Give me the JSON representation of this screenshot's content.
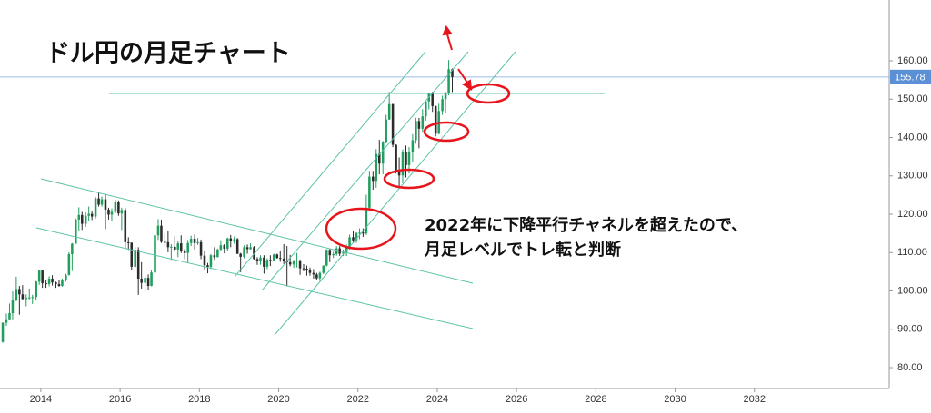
{
  "chart_data": {
    "type": "candlestick",
    "title": "ドル円の月足チャート",
    "annotation": [
      "2022年に下降平行チャネルを超えたので、",
      "月足レベルでトレ転と判断"
    ],
    "up_color": "#1f9e5c",
    "down_color": "#2b2b2b",
    "xlim": [
      2012.97,
      2035.4
    ],
    "ylim": [
      74.56,
      175.86
    ],
    "xticks": [
      2014,
      2016,
      2018,
      2020,
      2022,
      2024,
      2026,
      2028,
      2030,
      2032
    ],
    "yticks": [
      {
        "value": 80,
        "label": "80.00"
      },
      {
        "value": 90,
        "label": "90.00"
      },
      {
        "value": 100,
        "label": "100.00"
      },
      {
        "value": 110,
        "label": "110.00"
      },
      {
        "value": 120,
        "label": "120.00"
      },
      {
        "value": 130,
        "label": "130.00"
      },
      {
        "value": 140,
        "label": "140.00"
      },
      {
        "value": 150,
        "label": "150.00"
      },
      {
        "value": 160,
        "label": "160.00"
      }
    ],
    "last_price": 155.78,
    "last_price_color": "#5b8fd6",
    "x": [
      2013.04,
      2013.13,
      2013.21,
      2013.29,
      2013.38,
      2013.46,
      2013.54,
      2013.63,
      2013.71,
      2013.79,
      2013.88,
      2013.96,
      2014.04,
      2014.13,
      2014.21,
      2014.29,
      2014.38,
      2014.46,
      2014.54,
      2014.63,
      2014.71,
      2014.79,
      2014.88,
      2014.96,
      2015.04,
      2015.13,
      2015.21,
      2015.29,
      2015.38,
      2015.46,
      2015.54,
      2015.63,
      2015.71,
      2015.79,
      2015.88,
      2015.96,
      2016.04,
      2016.13,
      2016.21,
      2016.29,
      2016.38,
      2016.46,
      2016.54,
      2016.63,
      2016.71,
      2016.79,
      2016.88,
      2016.96,
      2017.04,
      2017.13,
      2017.21,
      2017.29,
      2017.38,
      2017.46,
      2017.54,
      2017.63,
      2017.71,
      2017.79,
      2017.88,
      2017.96,
      2018.04,
      2018.13,
      2018.21,
      2018.29,
      2018.38,
      2018.46,
      2018.54,
      2018.63,
      2018.71,
      2018.79,
      2018.88,
      2018.96,
      2019.04,
      2019.13,
      2019.21,
      2019.29,
      2019.38,
      2019.46,
      2019.54,
      2019.63,
      2019.71,
      2019.79,
      2019.88,
      2019.96,
      2020.04,
      2020.13,
      2020.21,
      2020.29,
      2020.38,
      2020.46,
      2020.54,
      2020.63,
      2020.71,
      2020.79,
      2020.88,
      2020.96,
      2021.04,
      2021.13,
      2021.21,
      2021.29,
      2021.38,
      2021.46,
      2021.54,
      2021.63,
      2021.71,
      2021.79,
      2021.88,
      2021.96,
      2022.04,
      2022.13,
      2022.21,
      2022.29,
      2022.38,
      2022.46,
      2022.54,
      2022.63,
      2022.71,
      2022.79,
      2022.88,
      2022.96,
      2023.04,
      2023.13,
      2023.21,
      2023.29,
      2023.38,
      2023.46,
      2023.54,
      2023.63,
      2023.71,
      2023.79,
      2023.88,
      2023.96,
      2024.04,
      2024.13,
      2024.21,
      2024.29,
      2024.38
    ],
    "open": [
      86.7,
      91.7,
      92.6,
      94.2,
      97.5,
      100.5,
      99.1,
      97.9,
      98.2,
      98.3,
      98.4,
      102.4,
      105.3,
      102.0,
      101.8,
      103.2,
      102.2,
      101.8,
      101.3,
      102.8,
      104.1,
      109.6,
      112.3,
      118.6,
      119.8,
      117.5,
      119.6,
      120.1,
      119.4,
      124.1,
      122.5,
      123.9,
      121.2,
      119.9,
      120.6,
      123.1,
      120.2,
      121.1,
      112.7,
      112.6,
      106.3,
      110.7,
      103.2,
      102.1,
      103.4,
      101.3,
      104.8,
      114.5,
      117.0,
      112.8,
      112.7,
      111.4,
      111.5,
      110.8,
      112.4,
      110.3,
      109.9,
      112.5,
      113.6,
      112.5,
      112.7,
      109.2,
      106.7,
      106.3,
      109.3,
      108.8,
      110.8,
      111.9,
      111.0,
      113.7,
      112.9,
      113.5,
      109.7,
      108.9,
      111.4,
      110.9,
      111.4,
      108.3,
      107.8,
      108.7,
      106.3,
      108.1,
      108.0,
      109.5,
      108.6,
      108.4,
      107.9,
      107.5,
      106.9,
      107.8,
      107.9,
      105.9,
      105.8,
      105.5,
      104.7,
      104.3,
      103.3,
      104.7,
      106.6,
      110.7,
      109.3,
      109.6,
      111.1,
      109.7,
      110.0,
      111.3,
      114.0,
      113.2,
      115.1,
      115.2,
      115.0,
      121.7,
      129.8,
      128.7,
      135.7,
      133.2,
      138.9,
      144.7,
      148.7,
      138.1,
      131.1,
      130.1,
      136.2,
      132.8,
      136.3,
      139.3,
      144.3,
      142.3,
      145.5,
      149.4,
      151.7,
      148.2,
      141.0,
      146.9,
      150.0,
      151.4,
      157.8
    ],
    "high": [
      91.8,
      94.1,
      96.7,
      99.9,
      103.7,
      101.3,
      101.5,
      99.1,
      100.6,
      99.0,
      102.6,
      105.4,
      105.4,
      102.8,
      103.8,
      104.1,
      102.4,
      102.8,
      103.2,
      104.5,
      110.1,
      112.5,
      118.9,
      121.8,
      120.6,
      120.5,
      122.0,
      120.8,
      124.5,
      125.9,
      124.6,
      125.3,
      121.7,
      121.5,
      123.8,
      123.6,
      121.7,
      121.7,
      114.0,
      112.0,
      111.5,
      111.4,
      107.5,
      104.2,
      104.3,
      105.5,
      114.8,
      118.7,
      118.6,
      114.9,
      115.5,
      112.2,
      114.4,
      112.9,
      114.5,
      111.0,
      113.3,
      114.4,
      114.7,
      113.8,
      113.4,
      110.5,
      107.3,
      109.6,
      111.4,
      111.0,
      113.2,
      112.2,
      113.9,
      114.6,
      114.2,
      113.8,
      109.9,
      111.9,
      112.1,
      112.4,
      111.7,
      108.8,
      109.3,
      109.3,
      108.5,
      109.3,
      109.7,
      109.7,
      110.3,
      112.2,
      111.7,
      109.4,
      108.1,
      109.9,
      108.2,
      107.0,
      106.6,
      106.1,
      105.7,
      104.7,
      105.0,
      106.7,
      110.9,
      110.9,
      110.2,
      111.7,
      111.7,
      110.8,
      112.1,
      114.7,
      115.5,
      115.3,
      116.3,
      116.3,
      125.1,
      131.3,
      131.3,
      137.0,
      139.4,
      139.1,
      145.9,
      151.9,
      148.8,
      138.2,
      134.8,
      136.9,
      137.9,
      137.5,
      140.9,
      145.1,
      145.1,
      147.4,
      149.7,
      151.7,
      151.9,
      148.3,
      148.8,
      150.9,
      151.9,
      160.2,
      157.99
    ],
    "low": [
      86.5,
      90.9,
      92.6,
      92.6,
      97.3,
      93.8,
      97.6,
      96.0,
      97.8,
      96.6,
      97.6,
      101.6,
      100.8,
      100.8,
      101.2,
      101.4,
      100.8,
      101.1,
      101.1,
      102.4,
      104.1,
      105.2,
      112.4,
      115.6,
      115.9,
      116.7,
      118.3,
      118.5,
      118.9,
      122.0,
      122.0,
      116.1,
      118.6,
      118.1,
      120.2,
      119.6,
      115.9,
      110.9,
      110.7,
      105.5,
      106.0,
      99.0,
      100.6,
      99.6,
      100.1,
      101.2,
      101.2,
      113.3,
      112.5,
      111.7,
      110.1,
      108.1,
      110.2,
      108.8,
      109.9,
      108.3,
      107.3,
      111.7,
      110.8,
      112.0,
      108.3,
      105.6,
      104.6,
      105.7,
      108.1,
      108.9,
      110.3,
      109.8,
      110.4,
      111.4,
      112.3,
      109.6,
      104.9,
      108.5,
      109.7,
      110.8,
      108.2,
      106.8,
      106.8,
      104.5,
      105.7,
      106.5,
      107.9,
      108.4,
      107.6,
      107.0,
      101.2,
      106.4,
      106.0,
      106.1,
      104.2,
      105.1,
      104.0,
      104.0,
      103.2,
      102.9,
      102.6,
      104.4,
      106.4,
      107.5,
      108.6,
      109.2,
      109.1,
      109.1,
      109.1,
      110.8,
      112.5,
      112.5,
      113.5,
      114.1,
      114.6,
      121.3,
      126.4,
      126.9,
      130.4,
      130.4,
      138.7,
      144.6,
      137.5,
      130.6,
      127.2,
      128.1,
      129.6,
      130.6,
      133.5,
      138.4,
      137.2,
      141.5,
      144.4,
      147.3,
      146.7,
      140.3,
      140.8,
      145.9,
      146.5,
      151.0,
      151.86
    ],
    "close": [
      91.7,
      92.6,
      94.2,
      97.5,
      100.5,
      99.1,
      97.9,
      98.2,
      98.3,
      98.4,
      102.4,
      105.3,
      102.0,
      101.8,
      103.2,
      102.2,
      101.8,
      101.3,
      102.8,
      104.1,
      109.6,
      112.3,
      118.6,
      119.8,
      117.5,
      119.6,
      120.1,
      119.4,
      124.1,
      122.5,
      123.9,
      121.2,
      119.9,
      120.6,
      123.1,
      120.2,
      121.1,
      112.7,
      112.6,
      106.3,
      110.7,
      103.2,
      102.1,
      103.4,
      101.3,
      104.8,
      114.5,
      117.0,
      112.8,
      112.7,
      111.4,
      111.5,
      110.8,
      112.4,
      110.3,
      109.9,
      112.5,
      113.6,
      112.5,
      112.7,
      109.2,
      106.7,
      106.3,
      109.3,
      108.8,
      110.8,
      111.9,
      111.0,
      113.7,
      112.9,
      113.5,
      109.7,
      108.9,
      111.4,
      110.9,
      111.4,
      108.3,
      107.8,
      108.7,
      106.3,
      108.1,
      108.0,
      109.5,
      108.6,
      108.4,
      107.9,
      107.5,
      106.9,
      107.8,
      107.9,
      105.9,
      105.8,
      105.5,
      104.7,
      104.3,
      103.3,
      104.7,
      106.6,
      110.7,
      109.3,
      109.6,
      111.1,
      109.7,
      110.0,
      111.3,
      114.0,
      113.2,
      115.1,
      115.2,
      115.0,
      121.7,
      129.8,
      128.7,
      135.7,
      133.2,
      138.9,
      144.7,
      148.7,
      138.1,
      131.1,
      130.1,
      136.2,
      132.8,
      136.3,
      139.3,
      144.3,
      142.3,
      145.5,
      149.4,
      151.7,
      148.2,
      141.0,
      146.9,
      150.0,
      151.4,
      157.8,
      155.78
    ]
  }
}
